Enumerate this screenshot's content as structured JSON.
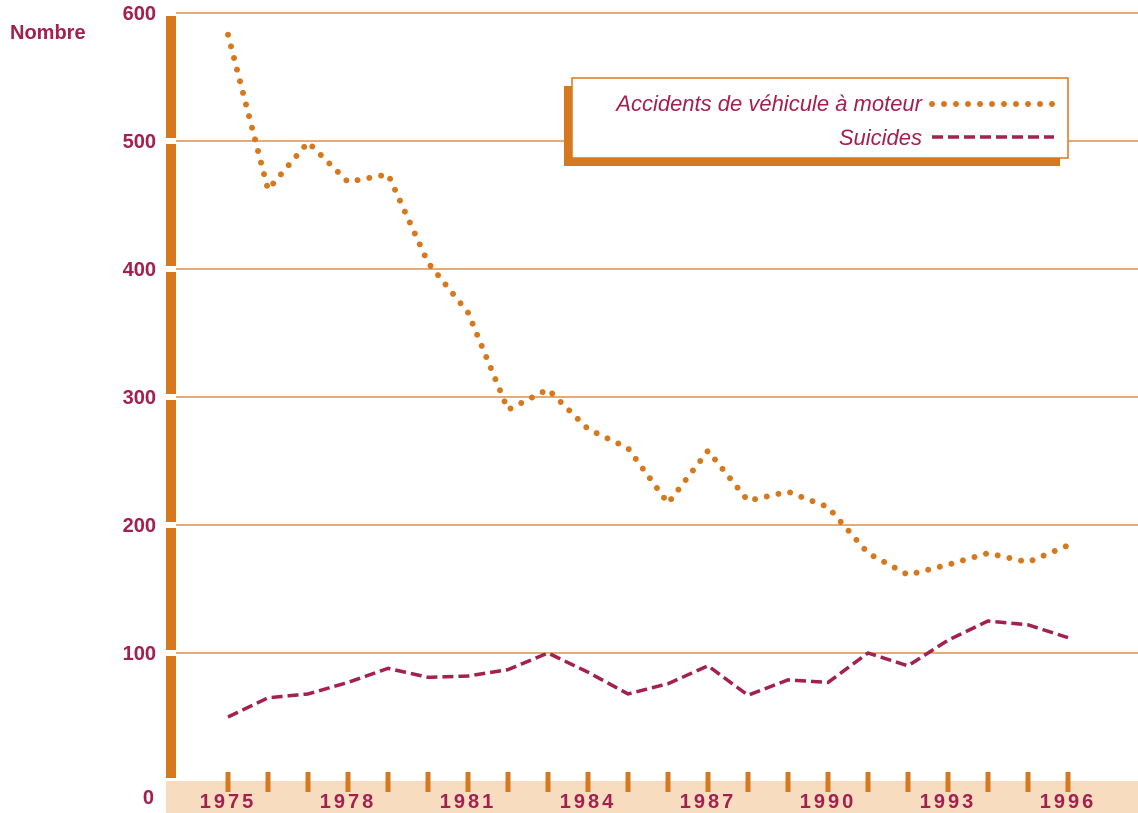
{
  "chart_data": {
    "type": "line",
    "ylabel": "Nombre",
    "ylim": [
      0,
      600
    ],
    "yticks": [
      0,
      100,
      200,
      300,
      400,
      500,
      600
    ],
    "xlim": [
      1975,
      1996
    ],
    "xticks": [
      1975,
      1978,
      1981,
      1984,
      1987,
      1990,
      1993,
      1996
    ],
    "xtick_labels": [
      "1975",
      "1978",
      "1981",
      "1984",
      "1987",
      "1990",
      "1993",
      "1996"
    ],
    "x": [
      1975,
      1976,
      1977,
      1978,
      1979,
      1980,
      1981,
      1982,
      1983,
      1984,
      1985,
      1986,
      1987,
      1988,
      1989,
      1990,
      1991,
      1992,
      1993,
      1994,
      1995,
      1996
    ],
    "series": [
      {
        "name": "Accidents de véhicule à moteur",
        "style": "dotted",
        "color": "#d6781e",
        "values": [
          583,
          462,
          499,
          468,
          474,
          405,
          366,
          290,
          306,
          275,
          260,
          217,
          258,
          219,
          226,
          214,
          178,
          161,
          169,
          178,
          171,
          184
        ]
      },
      {
        "name": "Suicides",
        "style": "dashed",
        "color": "#a3204f",
        "values": [
          50,
          65,
          68,
          77,
          88,
          81,
          82,
          87,
          100,
          85,
          68,
          76,
          90,
          67,
          79,
          77,
          100,
          90,
          110,
          125,
          122,
          112
        ]
      }
    ],
    "grid": true,
    "legend_position": "top-right",
    "colors": {
      "axis_bar": "#d6781e",
      "grid": "#d6781e",
      "xaxis_band": "#f8dcbf",
      "text": "#a3204f"
    }
  }
}
